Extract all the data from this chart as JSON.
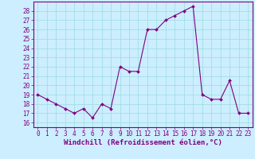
{
  "x": [
    0,
    1,
    2,
    3,
    4,
    5,
    6,
    7,
    8,
    9,
    10,
    11,
    12,
    13,
    14,
    15,
    16,
    17,
    18,
    19,
    20,
    21,
    22,
    23
  ],
  "y": [
    19,
    18.5,
    18,
    17.5,
    17,
    17.5,
    16.5,
    18,
    17.5,
    22,
    21.5,
    21.5,
    26,
    26,
    27,
    27.5,
    28,
    28.5,
    19,
    18.5,
    18.5,
    20.5,
    17,
    17
  ],
  "line_color": "#800080",
  "marker_color": "#800080",
  "bg_color": "#cceeff",
  "grid_color": "#99dddd",
  "xlabel": "Windchill (Refroidissement éolien,°C)",
  "xlabel_color": "#800080",
  "ylim": [
    15.5,
    29
  ],
  "yticks": [
    16,
    17,
    18,
    19,
    20,
    21,
    22,
    23,
    24,
    25,
    26,
    27,
    28
  ],
  "xticks": [
    0,
    1,
    2,
    3,
    4,
    5,
    6,
    7,
    8,
    9,
    10,
    11,
    12,
    13,
    14,
    15,
    16,
    17,
    18,
    19,
    20,
    21,
    22,
    23
  ],
  "tick_label_size": 5.5,
  "xlabel_size": 6.5
}
